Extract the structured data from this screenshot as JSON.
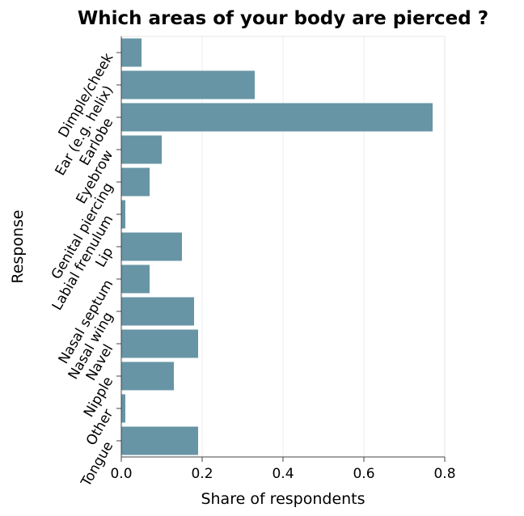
{
  "chart_data": {
    "type": "bar",
    "orientation": "horizontal",
    "title": "Which areas of your body are pierced ?",
    "xlabel": "Share of respondents",
    "ylabel": "Response",
    "categories": [
      "Dimple/cheek",
      "Ear (e.g. helix)",
      "Earlobe",
      "Eyebrow",
      "Genital piercing",
      "Labial frenulum",
      "Lip",
      "Nasal septum",
      "Nasal wing",
      "Navel",
      "Nipple",
      "Other",
      "Tongue"
    ],
    "values": [
      0.05,
      0.33,
      0.77,
      0.1,
      0.07,
      0.01,
      0.15,
      0.07,
      0.18,
      0.19,
      0.13,
      0.01,
      0.19
    ],
    "xlim": [
      0,
      0.8
    ],
    "xticks": [
      "0.0",
      "0.2",
      "0.4",
      "0.6",
      "0.8"
    ],
    "grid": true,
    "bar_color": "#6795a5"
  }
}
